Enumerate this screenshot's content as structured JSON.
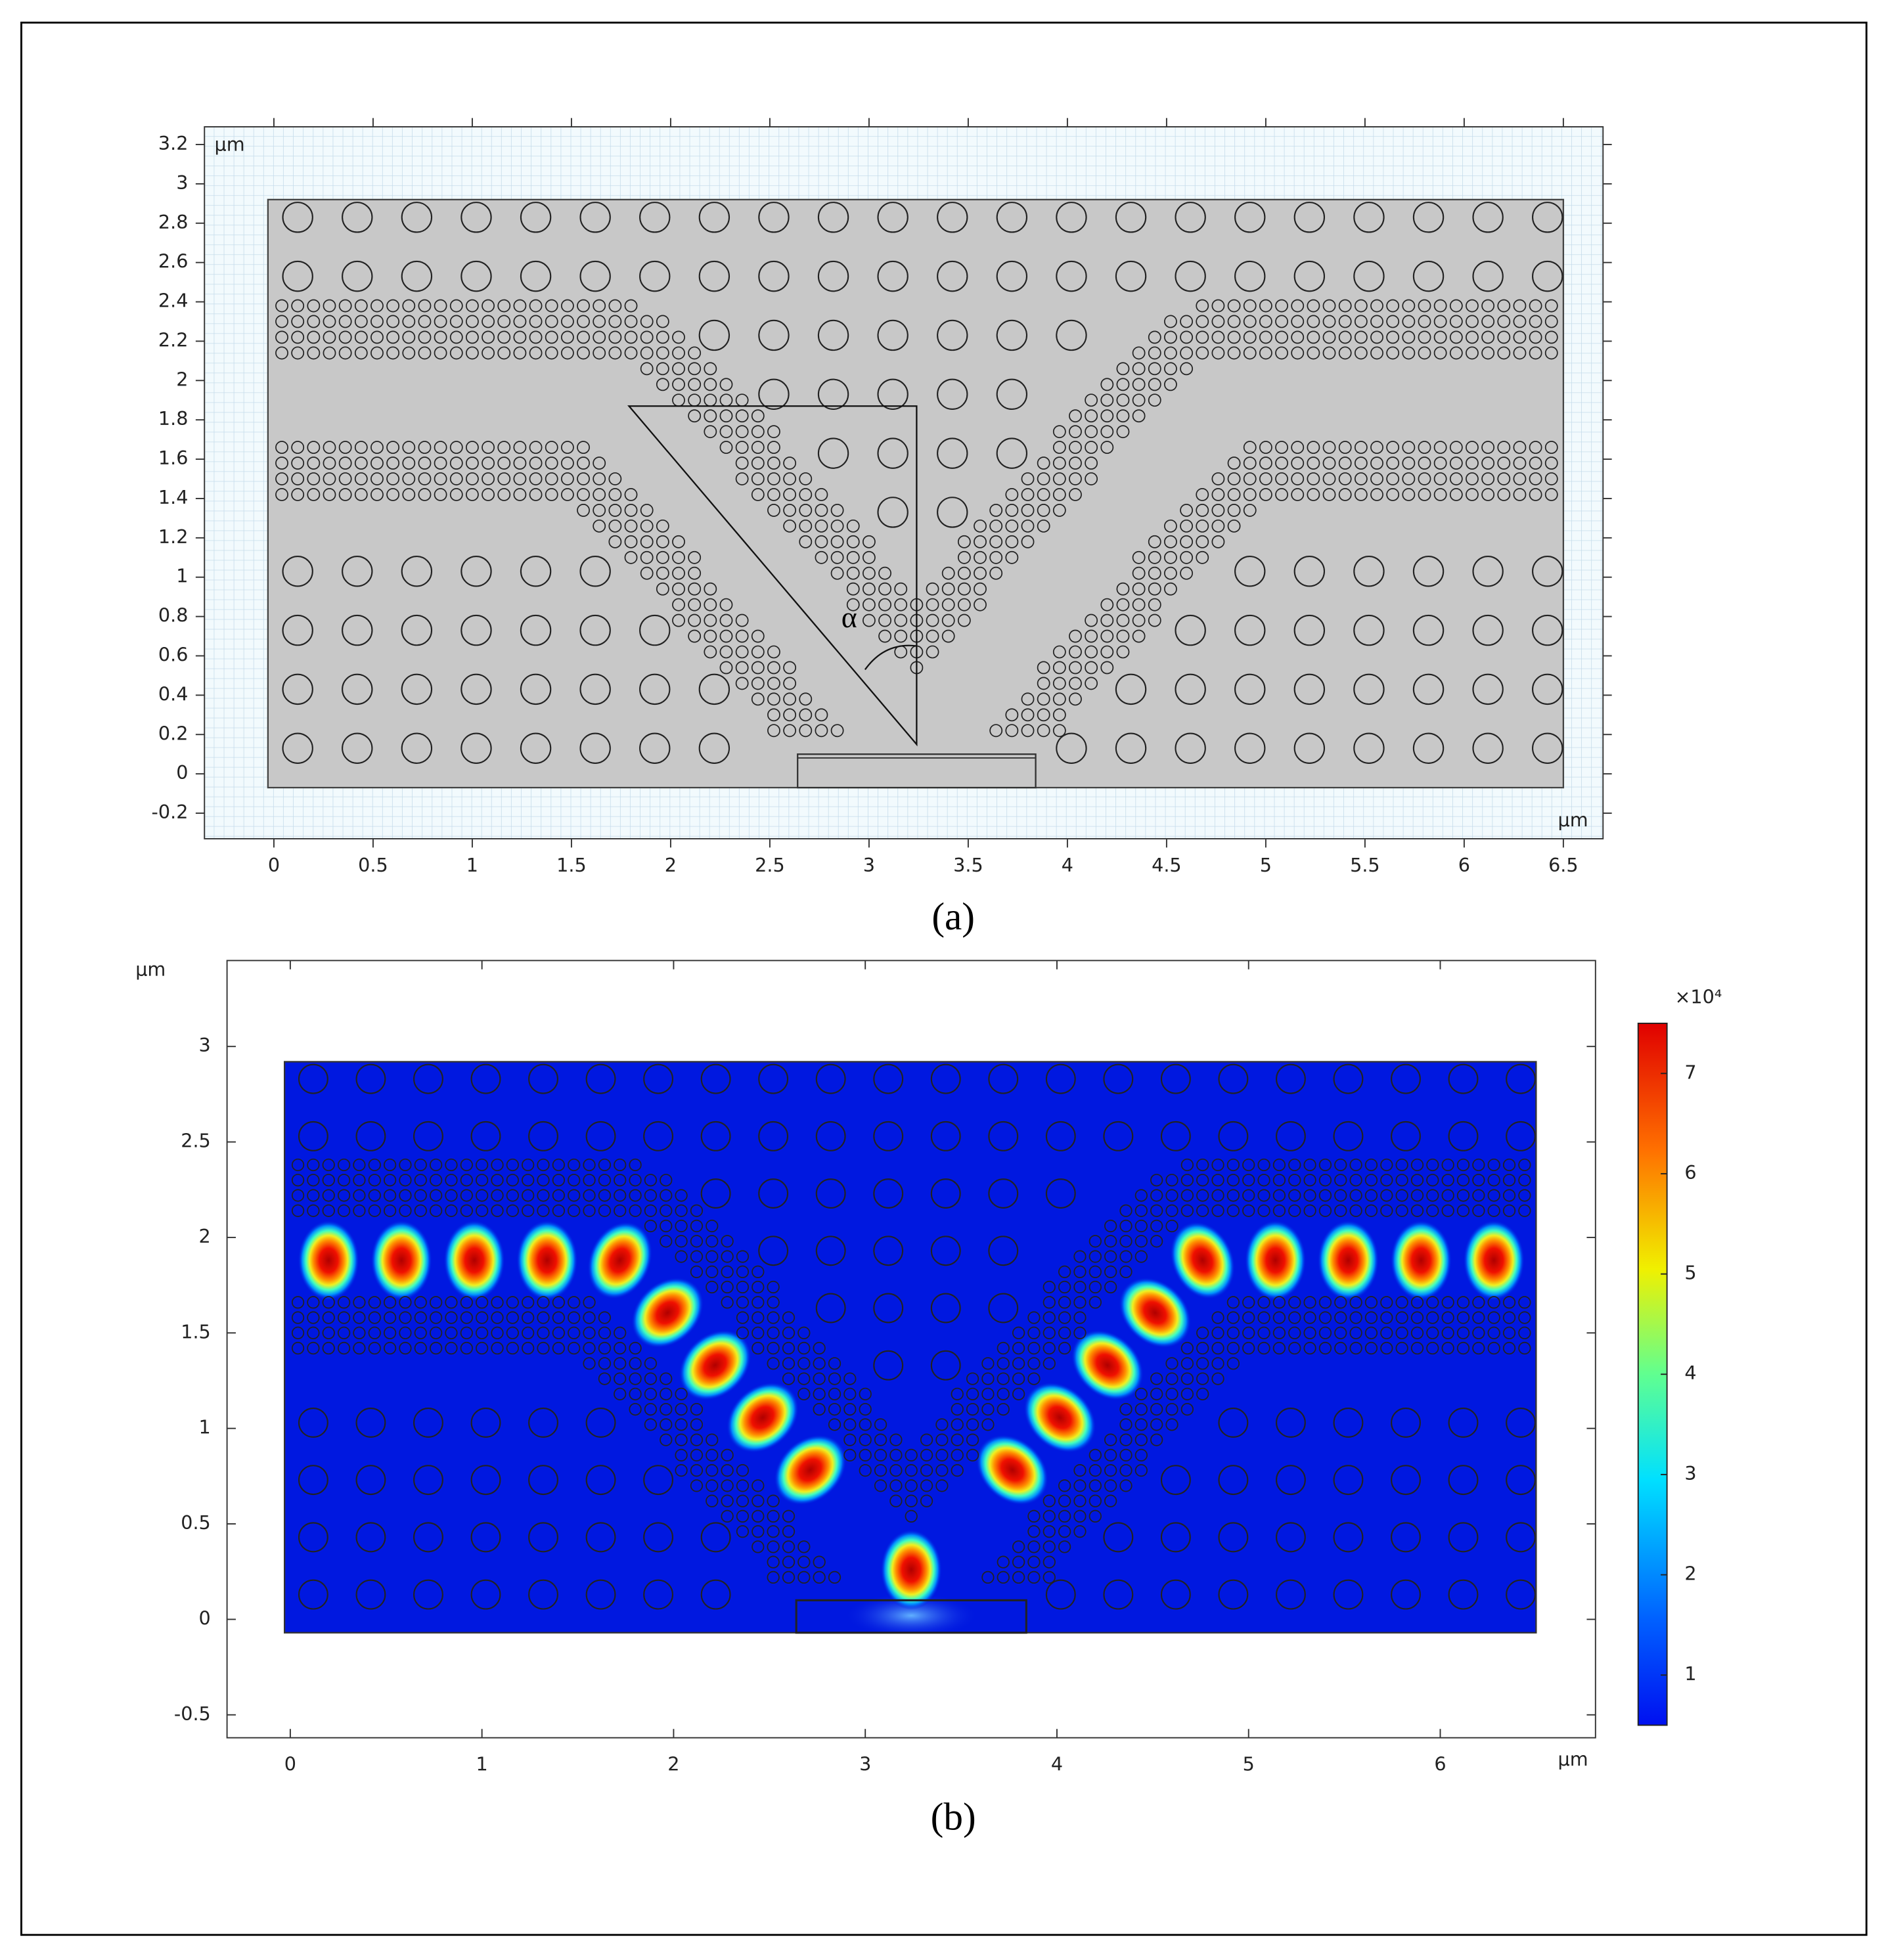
{
  "chart_data": [
    {
      "type": "geometry",
      "xlim": [
        -0.35,
        6.7
      ],
      "ylim": [
        -0.33,
        3.29
      ],
      "xticks": [
        0,
        0.5,
        1,
        1.5,
        2,
        2.5,
        3,
        3.5,
        4,
        4.5,
        5,
        5.5,
        6,
        6.5
      ],
      "yticks": [
        -0.2,
        0,
        0.2,
        0.4,
        0.6,
        0.8,
        1,
        1.2,
        1.4,
        1.6,
        1.8,
        2,
        2.2,
        2.4,
        2.6,
        2.8,
        3,
        3.2
      ],
      "xlabel": "μm",
      "ylabel": "μm",
      "annotation": "α",
      "caption": "(a)",
      "grid": true
    },
    {
      "type": "heatmap",
      "xlim": [
        -0.33,
        6.81
      ],
      "ylim": [
        -0.62,
        3.45
      ],
      "xticks": [
        0,
        1,
        2,
        3,
        4,
        5,
        6
      ],
      "yticks": [
        -0.5,
        0,
        0.5,
        1,
        1.5,
        2,
        2.5,
        3
      ],
      "xlabel": "μm",
      "ylabel": "μm",
      "caption": "(b)",
      "colorbar": {
        "label": "×10⁴",
        "lim": [
          0.5,
          7.5
        ],
        "ticks": [
          1,
          2,
          3,
          4,
          5,
          6,
          7
        ]
      }
    }
  ]
}
